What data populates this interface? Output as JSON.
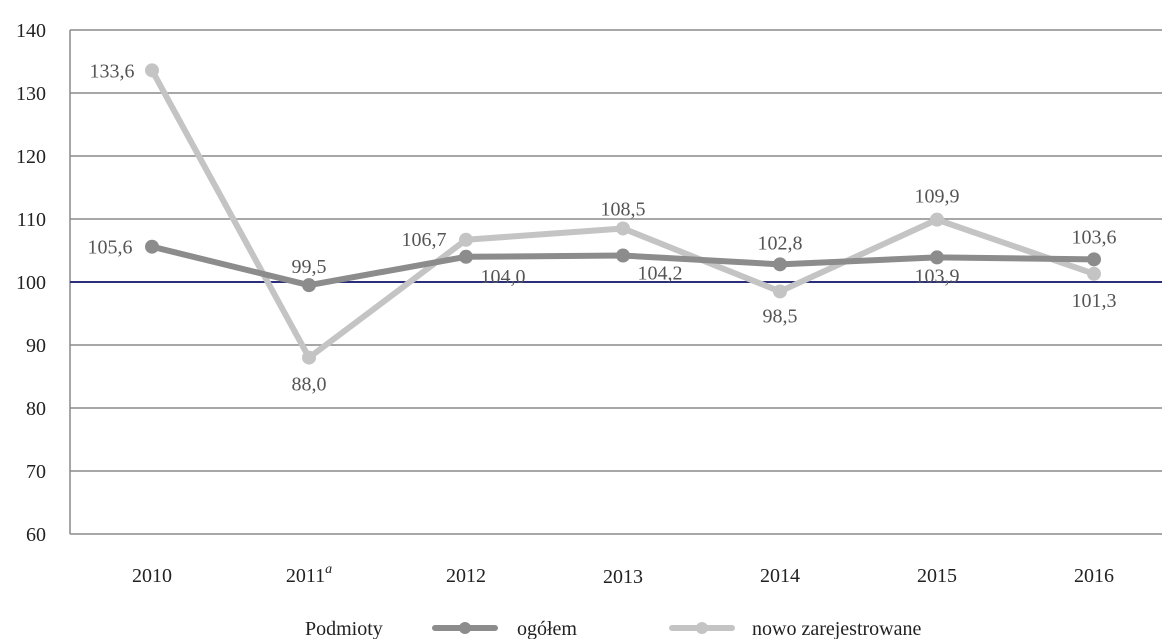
{
  "chart_data": {
    "type": "line",
    "categories": [
      "2010",
      "2011",
      "2012",
      "2013",
      "2014",
      "2015",
      "2016"
    ],
    "category_superscripts": [
      "",
      "a",
      "",
      "",
      "",
      "",
      ""
    ],
    "ylim": [
      60,
      140
    ],
    "yticks": [
      60,
      70,
      80,
      90,
      100,
      110,
      120,
      130,
      140
    ],
    "reference_line": {
      "value": 100,
      "color": "#2b2f7a"
    },
    "grid": true,
    "legend_title": "Podmioty",
    "legend_position": "bottom",
    "series": [
      {
        "name": "ogółem",
        "color": "#8c8c8c",
        "values": [
          105.6,
          99.5,
          104.0,
          104.2,
          102.8,
          103.9,
          103.6
        ],
        "labels": [
          "105,6",
          "99,5",
          "104,0",
          "104,2",
          "102,8",
          "103,9",
          "103,6"
        ]
      },
      {
        "name": "nowo zarejestrowane",
        "color": "#c4c4c4",
        "values": [
          133.6,
          88.0,
          106.7,
          108.5,
          98.5,
          109.9,
          101.3
        ],
        "labels": [
          "133,6",
          "88,0",
          "106,7",
          "108,5",
          "98,5",
          "109,9",
          "101,3"
        ]
      }
    ]
  }
}
